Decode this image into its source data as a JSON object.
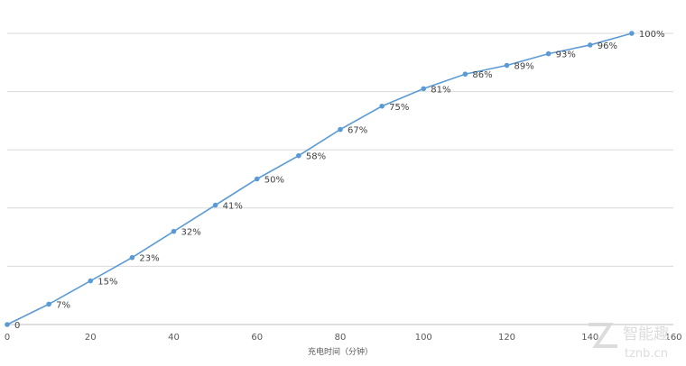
{
  "chart_data": {
    "type": "line",
    "title": "",
    "xlabel": "充电时间（分钟）",
    "ylabel": "",
    "x": [
      0,
      10,
      20,
      30,
      40,
      50,
      60,
      70,
      80,
      90,
      100,
      110,
      120,
      130,
      140,
      150
    ],
    "series": [
      {
        "values": [
          0,
          7,
          15,
          23,
          32,
          41,
          50,
          58,
          67,
          75,
          81,
          86,
          89,
          93,
          96,
          100
        ],
        "labels": [
          "0",
          "7%",
          "15%",
          "23%",
          "32%",
          "41%",
          "50%",
          "58%",
          "67%",
          "75%",
          "81%",
          "86%",
          "89%",
          "93%",
          "96%",
          "100%"
        ],
        "color": "#5b9bd5"
      }
    ],
    "xlim": [
      0,
      160
    ],
    "xticks": [
      0,
      20,
      40,
      60,
      80,
      100,
      120,
      140,
      160
    ],
    "ylim": [
      0,
      100
    ],
    "y_gridlines": [
      0,
      20,
      40,
      60,
      80,
      100
    ],
    "grid": true,
    "legend": "none"
  },
  "watermark": {
    "name": "智能趣",
    "url": "tznb.cn"
  }
}
